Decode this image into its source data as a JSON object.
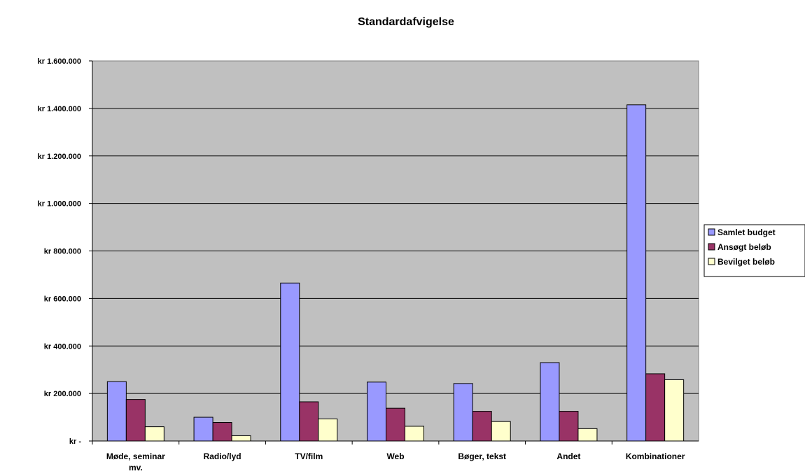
{
  "chart_data": {
    "type": "bar",
    "title": "Standardafvigelse",
    "xlabel": "",
    "ylabel": "",
    "categories": [
      "Møde, seminar mv.",
      "Radio/lyd",
      "TV/film",
      "Web",
      "Bøger, tekst",
      "Andet",
      "Kombinationer"
    ],
    "series": [
      {
        "name": "Samlet budget",
        "color": "#9999ff",
        "values": [
          250000,
          100000,
          665000,
          248000,
          242000,
          330000,
          1415000
        ]
      },
      {
        "name": "Ansøgt beløb",
        "color": "#993366",
        "values": [
          175000,
          78000,
          165000,
          138000,
          125000,
          125000,
          283000
        ]
      },
      {
        "name": "Bevilget beløb",
        "color": "#ffffcc",
        "values": [
          60000,
          22000,
          93000,
          62000,
          82000,
          52000,
          258000
        ]
      }
    ],
    "ylim": [
      0,
      1600000
    ],
    "yticks": [
      0,
      200000,
      400000,
      600000,
      800000,
      1000000,
      1200000,
      1400000,
      1600000
    ],
    "ytick_labels": [
      "kr -",
      "kr 200.000",
      "kr 400.000",
      "kr 600.000",
      "kr 800.000",
      "kr 1.000.000",
      "kr 1.200.000",
      "kr 1.400.000",
      "kr 1.600.000"
    ],
    "plot_background": "#c0c0c0",
    "grid": true,
    "legend_position": "right"
  }
}
